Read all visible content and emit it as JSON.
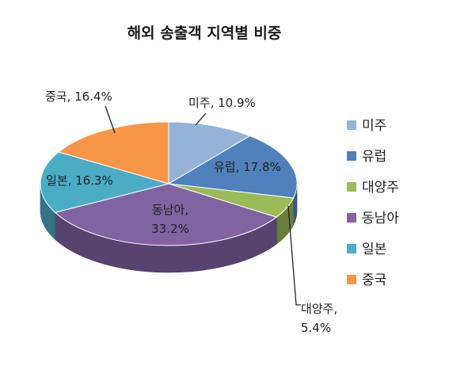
{
  "chart_data": {
    "type": "pie",
    "title": "해외 송출객 지역별 비중",
    "slices": [
      {
        "name": "미주",
        "value": 10.9,
        "label": "미주, 10.9%",
        "color": "#95B3D7"
      },
      {
        "name": "유럽",
        "value": 17.8,
        "label": "유럽, 17.8%",
        "color": "#4F81BD"
      },
      {
        "name": "대양주",
        "value": 5.4,
        "label": [
          "대양주,",
          "5.4%"
        ],
        "color": "#9BBB59"
      },
      {
        "name": "동남아",
        "value": 33.2,
        "label": [
          "동남아,",
          "33.2%"
        ],
        "color": "#8064A2"
      },
      {
        "name": "일본",
        "value": 16.3,
        "label": "일본, 16.3%",
        "color": "#4BACC6"
      },
      {
        "name": "중국",
        "value": 16.4,
        "label": "중국, 16.4%",
        "color": "#F79646"
      }
    ],
    "legend_position": "right",
    "style": "3d-tilted"
  }
}
